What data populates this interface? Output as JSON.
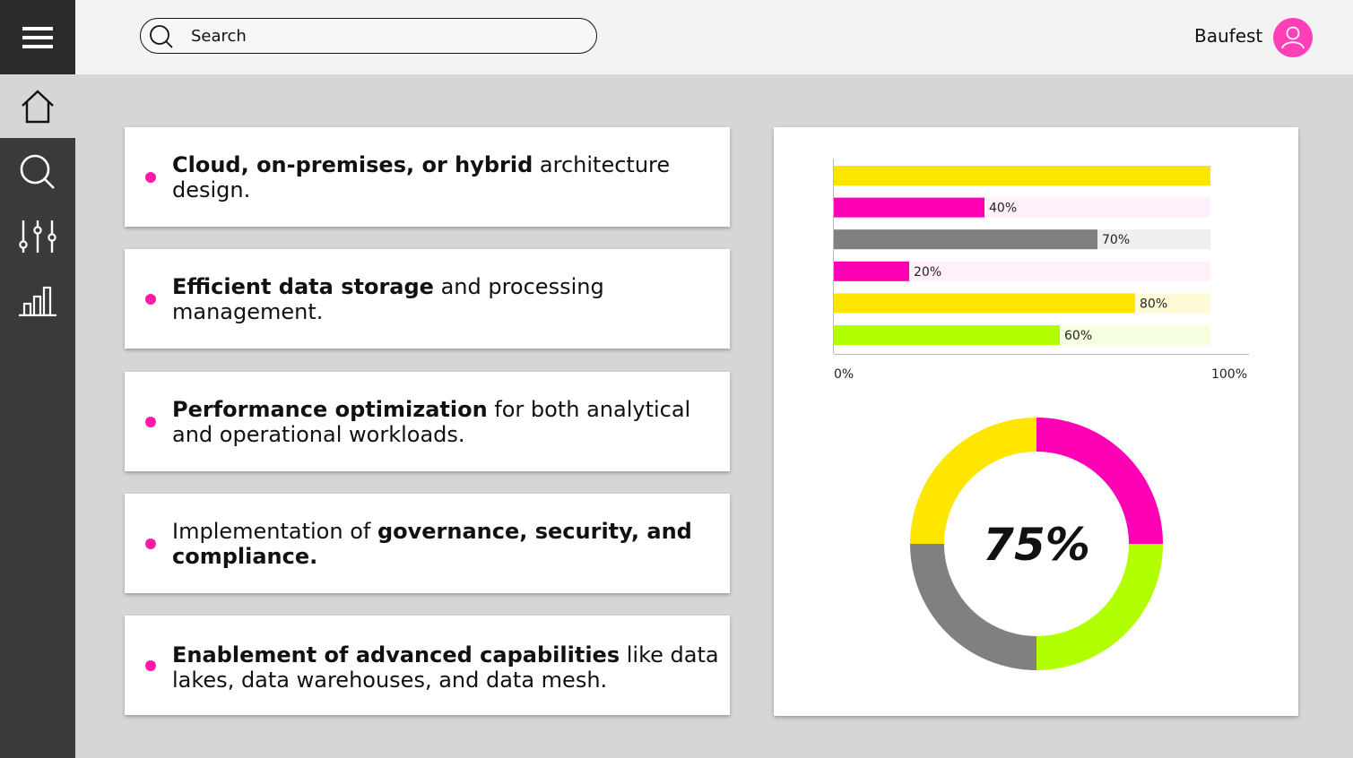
{
  "header": {
    "search": {
      "placeholder": "Search",
      "value": ""
    },
    "user": {
      "name": "Baufest"
    }
  },
  "sidebar": {
    "items": [
      {
        "icon": "menu-icon"
      },
      {
        "icon": "home-icon",
        "active": true
      },
      {
        "icon": "search-icon"
      },
      {
        "icon": "sliders-icon"
      },
      {
        "icon": "bar-chart-icon"
      }
    ]
  },
  "cards": [
    {
      "bold": "Cloud, on-premises, or hybrid",
      "rest": " architecture design."
    },
    {
      "bold": "Efficient data storage",
      "rest": " and processing management."
    },
    {
      "bold": "Performance optimization",
      "rest": " for both analytical and operational workloads."
    },
    {
      "pre": "Implementation of ",
      "bold": "governance, security, and compliance."
    },
    {
      "bold": "Enablement of advanced capabilities",
      "rest": " like data lakes, data warehouses, and data mesh."
    }
  ],
  "colors": {
    "accent": "#ff1aa8",
    "yellow": "#ffe600",
    "magenta": "#ff00b4",
    "gray": "#808080",
    "lime": "#b2ff00"
  },
  "chart_data": [
    {
      "type": "bar",
      "orientation": "horizontal",
      "xlim": [
        0,
        100
      ],
      "tick_labels": [
        "0%",
        "100%"
      ],
      "bars": [
        {
          "value": 100,
          "label": "",
          "color": "#ffe600",
          "track": "#fffbd6"
        },
        {
          "value": 40,
          "label": "40%",
          "color": "#ff00b4",
          "track": "#fff0fa"
        },
        {
          "value": 70,
          "label": "70%",
          "color": "#808080",
          "track": "#efefef"
        },
        {
          "value": 20,
          "label": "20%",
          "color": "#ff00b4",
          "track": "#fff0fa"
        },
        {
          "value": 80,
          "label": "80%",
          "color": "#ffe600",
          "track": "#fffbd6"
        },
        {
          "value": 60,
          "label": "60%",
          "color": "#b2ff00",
          "track": "#f6ffe0"
        }
      ]
    },
    {
      "type": "pie",
      "variant": "donut",
      "center_label": "75%",
      "slices": [
        {
          "value": 25,
          "color": "#ff00b4"
        },
        {
          "value": 25,
          "color": "#b2ff00"
        },
        {
          "value": 25,
          "color": "#808080"
        },
        {
          "value": 25,
          "color": "#ffe600"
        }
      ]
    }
  ]
}
